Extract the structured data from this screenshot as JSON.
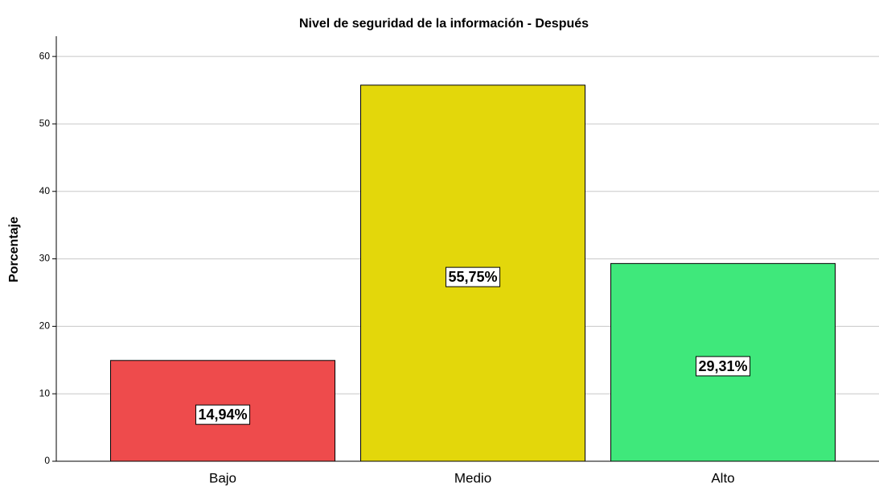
{
  "chart_data": {
    "type": "bar",
    "title": "Nivel de seguridad de la información - Después",
    "y_label": "Porcentaje",
    "categories": [
      "Bajo",
      "Medio",
      "Alto"
    ],
    "values": [
      14.94,
      55.75,
      29.31
    ],
    "value_labels": [
      "14,94%",
      "55,75%",
      "29,31%"
    ],
    "colors": [
      "#ee4b4c",
      "#e3d70b",
      "#3fe87b"
    ],
    "ylim": [
      0,
      63
    ],
    "yticks": [
      0,
      10,
      20,
      30,
      40,
      50,
      60
    ],
    "grid": true
  }
}
